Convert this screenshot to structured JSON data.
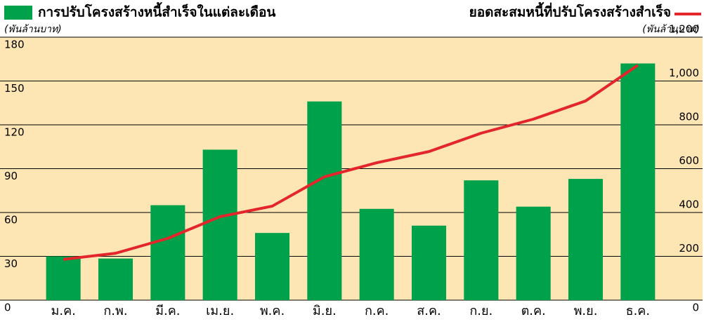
{
  "chart_data": {
    "type": "bar",
    "categories": [
      "ม.ค.",
      "ก.พ.",
      "มี.ค.",
      "เม.ย.",
      "พ.ค.",
      "มิ.ย.",
      "ก.ค.",
      "ส.ค.",
      "ก.ย.",
      "ต.ค.",
      "พ.ย.",
      "ธ.ค."
    ],
    "y_label": "(พันล้านบาท)",
    "y2_label": "(พันล้านบาท)",
    "series": [
      {
        "name": "การปรับโครงสร้างหนี้สำเร็จในแต่ละเดือน",
        "type": "bar",
        "color": "#00a14b",
        "axis": "y",
        "values": [
          30,
          28.5,
          65,
          103,
          46,
          136,
          62.5,
          51,
          82,
          64,
          83,
          162
        ]
      },
      {
        "name": "ยอดสะสมหนี้ที่ปรับโครงสร้างสำเร็จ",
        "type": "line",
        "color": "#e3262b",
        "axis": "y2",
        "values": [
          186,
          214,
          282,
          381,
          429,
          563,
          627,
          678,
          762,
          826,
          909,
          1072
        ]
      }
    ],
    "ylim": [
      0,
      180
    ],
    "yticks": [
      0,
      30,
      60,
      90,
      120,
      150,
      180
    ],
    "y2lim": [
      0,
      1200
    ],
    "y2ticks": [
      0,
      200,
      400,
      600,
      800,
      {
        "value": 1000,
        "label": "1,000"
      },
      {
        "value": 1200,
        "label": "1,200"
      }
    ],
    "grid": true,
    "background": "#fde6b4"
  }
}
